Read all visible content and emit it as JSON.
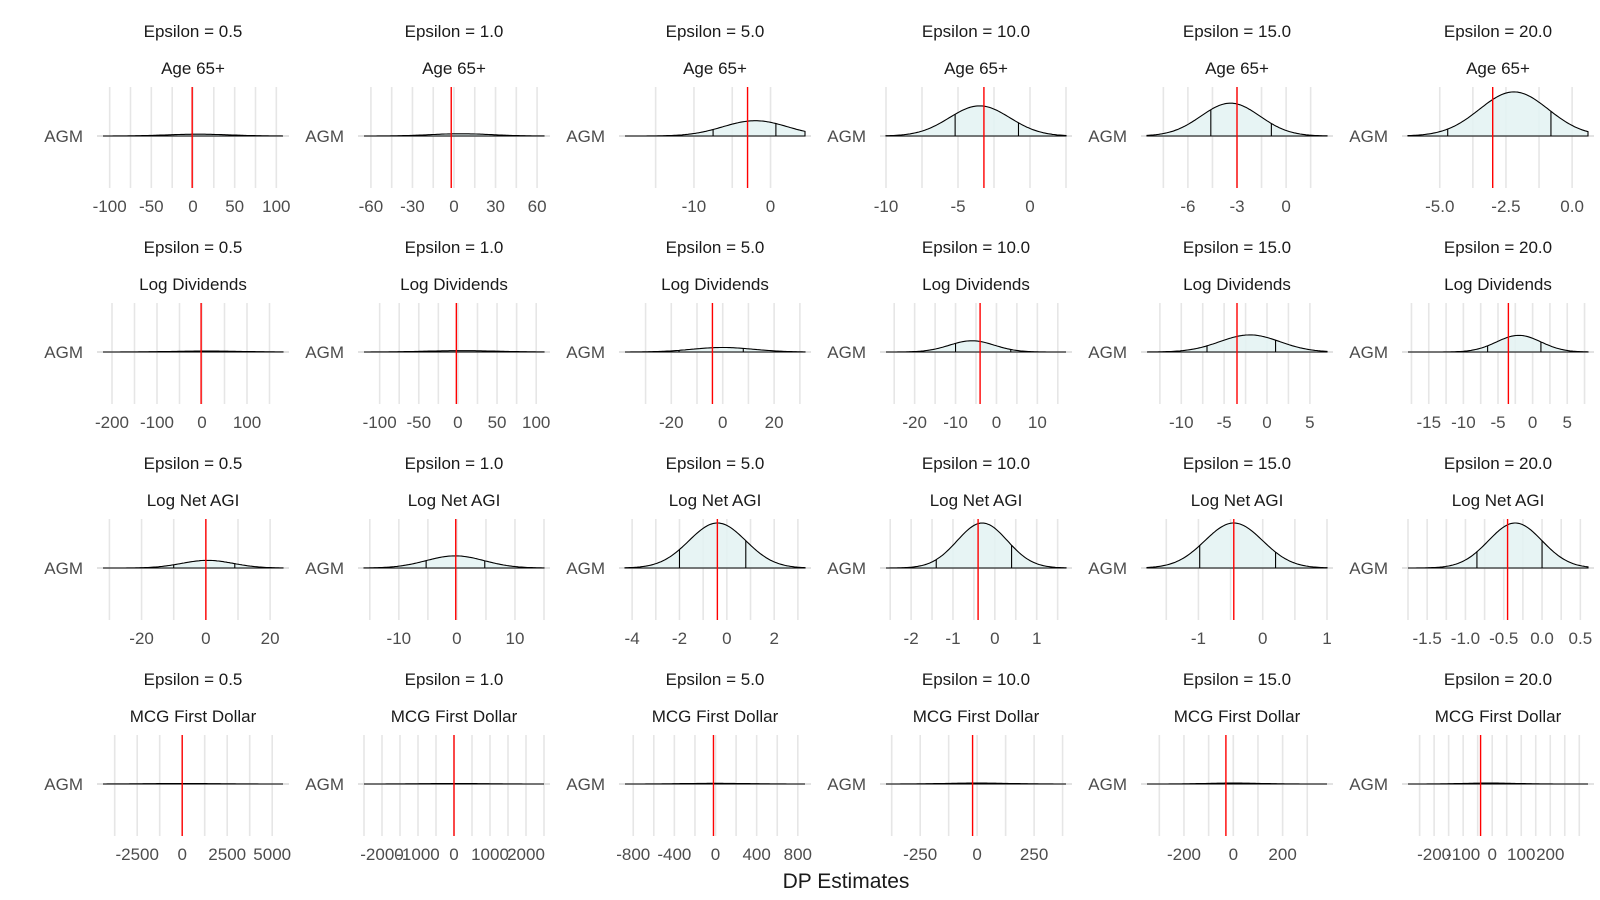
{
  "x_axis_title": "DP Estimates",
  "y_category": "AGM",
  "ref_line_color": "#ff0000",
  "density_fill": "#e3f2f2",
  "chart_data": [
    {
      "type": "density",
      "variable": "Age 65+",
      "epsilon": "Epsilon = 0.5",
      "xlim": [
        -108,
        108
      ],
      "ticks": [
        -100,
        -50,
        0,
        50,
        100
      ],
      "ref": -1,
      "peak_x": 6,
      "sd": 38,
      "height": 0.04,
      "quantiles": [],
      "scale": "free_y"
    },
    {
      "type": "density",
      "variable": "Age 65+",
      "epsilon": "Epsilon = 1.0",
      "xlim": [
        -65,
        65
      ],
      "ticks": [
        -60,
        -30,
        0,
        30,
        60
      ],
      "ref": -2,
      "peak_x": 5,
      "sd": 22,
      "height": 0.05,
      "quantiles": [],
      "scale": "free_y"
    },
    {
      "type": "density",
      "variable": "Age 65+",
      "epsilon": "Epsilon = 5.0",
      "xlim": [
        -19,
        4.5
      ],
      "ticks": [
        -10,
        0
      ],
      "ref": -3,
      "peak_x": -2,
      "sd": 4.2,
      "height": 0.34,
      "quantiles": [
        -7.5,
        0.7
      ],
      "scale": "free_y"
    },
    {
      "type": "density",
      "variable": "Age 65+",
      "epsilon": "Epsilon = 10.0",
      "xlim": [
        -10,
        2.5
      ],
      "ticks": [
        -10,
        -5,
        0
      ],
      "ref": -3.2,
      "peak_x": -3.5,
      "sd": 2.1,
      "height": 0.67,
      "quantiles": [
        -5.2,
        -0.8
      ],
      "scale": "free_y"
    },
    {
      "type": "density",
      "variable": "Age 65+",
      "epsilon": "Epsilon = 15.0",
      "xlim": [
        -8.5,
        2.5
      ],
      "ticks": [
        -6,
        -3,
        0
      ],
      "ref": -3.0,
      "peak_x": -3.4,
      "sd": 1.8,
      "height": 0.73,
      "quantiles": [
        -4.6,
        -0.9
      ],
      "scale": "free_y"
    },
    {
      "type": "density",
      "variable": "Age 65+",
      "epsilon": "Epsilon = 20.0",
      "xlim": [
        -6.2,
        0.6
      ],
      "ticks": [
        -5.0,
        -2.5,
        0.0
      ],
      "ref": -3.0,
      "peak_x": -2.2,
      "sd": 1.3,
      "height": 0.98,
      "quantiles": [
        -4.7,
        -0.8
      ],
      "scale": "free_y"
    },
    {
      "type": "density",
      "variable": "Log Dividends",
      "epsilon": "Epsilon = 0.5",
      "xlim": [
        -220,
        180
      ],
      "ticks": [
        -200,
        -100,
        0,
        100
      ],
      "ref": -2,
      "peak_x": 10,
      "sd": 80,
      "height": 0.02,
      "quantiles": [],
      "scale": "free_y"
    },
    {
      "type": "density",
      "variable": "Log Dividends",
      "epsilon": "Epsilon = 1.0",
      "xlim": [
        -120,
        110
      ],
      "ticks": [
        -100,
        -50,
        0,
        50,
        100
      ],
      "ref": -2,
      "peak_x": 5,
      "sd": 45,
      "height": 0.03,
      "quantiles": [],
      "scale": "free_y"
    },
    {
      "type": "density",
      "variable": "Log Dividends",
      "epsilon": "Epsilon = 5.0",
      "xlim": [
        -38,
        32
      ],
      "ticks": [
        -20,
        0,
        20
      ],
      "ref": -4,
      "peak_x": 0,
      "sd": 12,
      "height": 0.1,
      "quantiles": [
        -17,
        8
      ],
      "scale": "free_y"
    },
    {
      "type": "density",
      "variable": "Log Dividends",
      "epsilon": "Epsilon = 10.0",
      "xlim": [
        -27,
        17
      ],
      "ticks": [
        -20,
        -10,
        0,
        10
      ],
      "ref": -4,
      "peak_x": -6,
      "sd": 5.5,
      "height": 0.25,
      "quantiles": [
        -10,
        3.5
      ],
      "scale": "free_y"
    },
    {
      "type": "density",
      "variable": "Log Dividends",
      "epsilon": "Epsilon = 15.0",
      "xlim": [
        -14,
        7
      ],
      "ticks": [
        -10,
        -5,
        0,
        5
      ],
      "ref": -3.5,
      "peak_x": -2,
      "sd": 3.5,
      "height": 0.38,
      "quantiles": [
        -7,
        1
      ],
      "scale": "free_y"
    },
    {
      "type": "density",
      "variable": "Log Dividends",
      "epsilon": "Epsilon = 20.0",
      "xlim": [
        -18,
        8
      ],
      "ticks": [
        -15,
        -10,
        -5,
        0,
        5
      ],
      "ref": -3.5,
      "peak_x": -2,
      "sd": 3.2,
      "height": 0.37,
      "quantiles": [
        -6.5,
        1.2
      ],
      "scale": "free_y"
    },
    {
      "type": "density",
      "variable": "Log Net AGI",
      "epsilon": "Epsilon = 0.5",
      "xlim": [
        -32,
        24
      ],
      "ticks": [
        -20,
        0,
        20
      ],
      "ref": 0,
      "peak_x": 0.5,
      "sd": 8,
      "height": 0.17,
      "quantiles": [
        -10,
        9
      ],
      "scale": "free_y"
    },
    {
      "type": "density",
      "variable": "Log Net AGI",
      "epsilon": "Epsilon = 1.0",
      "xlim": [
        -16,
        15
      ],
      "ticks": [
        -10,
        0,
        10
      ],
      "ref": -0.2,
      "peak_x": -0.3,
      "sd": 5,
      "height": 0.27,
      "quantiles": [
        -5.3,
        4.8
      ],
      "scale": "free_y"
    },
    {
      "type": "density",
      "variable": "Log Net AGI",
      "epsilon": "Epsilon = 5.0",
      "xlim": [
        -4.3,
        3.3
      ],
      "ticks": [
        -4,
        -2,
        0,
        2
      ],
      "ref": -0.4,
      "peak_x": -0.4,
      "sd": 1.2,
      "height": 1.0,
      "quantiles": [
        -2.0,
        0.8
      ],
      "scale": "free_y"
    },
    {
      "type": "density",
      "variable": "Log Net AGI",
      "epsilon": "Epsilon = 10.0",
      "xlim": [
        -2.6,
        1.7
      ],
      "ticks": [
        -2,
        -1,
        0,
        1
      ],
      "ref": -0.4,
      "peak_x": -0.3,
      "sd": 0.6,
      "height": 1.0,
      "quantiles": [
        -1.4,
        0.4
      ],
      "scale": "free_y"
    },
    {
      "type": "density",
      "variable": "Log Net AGI",
      "epsilon": "Epsilon = 15.0",
      "xlim": [
        -1.8,
        1.0
      ],
      "ticks": [
        -1,
        0,
        1
      ],
      "ref": -0.45,
      "peak_x": -0.45,
      "sd": 0.45,
      "height": 1.0,
      "quantiles": [
        -0.98,
        0.2
      ],
      "scale": "free_y"
    },
    {
      "type": "density",
      "variable": "Log Net AGI",
      "epsilon": "Epsilon = 20.0",
      "xlim": [
        -1.75,
        0.6
      ],
      "ticks": [
        -1.5,
        -1.0,
        -0.5,
        0.0,
        0.5
      ],
      "ref": -0.45,
      "peak_x": -0.35,
      "sd": 0.35,
      "height": 1.0,
      "quantiles": [
        -0.85,
        0.0
      ],
      "scale": "free_y"
    },
    {
      "type": "density",
      "variable": "MCG First Dollar",
      "epsilon": "Epsilon = 0.5",
      "xlim": [
        -4400,
        5600
      ],
      "ticks": [
        -2500,
        0,
        2500,
        5000
      ],
      "ref": 0,
      "peak_x": 0,
      "sd": 2000,
      "height": 0.01,
      "quantiles": [],
      "scale": "free_y"
    },
    {
      "type": "density",
      "variable": "MCG First Dollar",
      "epsilon": "Epsilon = 1.0",
      "xlim": [
        -2500,
        2500
      ],
      "ticks": [
        -2000,
        -1000,
        0,
        1000,
        2000
      ],
      "ref": 0,
      "peak_x": 0,
      "sd": 900,
      "height": 0.01,
      "quantiles": [],
      "scale": "free_y"
    },
    {
      "type": "density",
      "variable": "MCG First Dollar",
      "epsilon": "Epsilon = 5.0",
      "xlim": [
        -880,
        870
      ],
      "ticks": [
        -800,
        -400,
        0,
        400,
        800
      ],
      "ref": -20,
      "peak_x": 0,
      "sd": 300,
      "height": 0.015,
      "quantiles": [],
      "scale": "free_y"
    },
    {
      "type": "density",
      "variable": "MCG First Dollar",
      "epsilon": "Epsilon = 10.0",
      "xlim": [
        -400,
        390
      ],
      "ticks": [
        -250,
        0,
        250
      ],
      "ref": -20,
      "peak_x": 0,
      "sd": 140,
      "height": 0.02,
      "quantiles": [],
      "scale": "free_y"
    },
    {
      "type": "density",
      "variable": "MCG First Dollar",
      "epsilon": "Epsilon = 15.0",
      "xlim": [
        -350,
        380
      ],
      "ticks": [
        -200,
        0,
        200
      ],
      "ref": -30,
      "peak_x": 0,
      "sd": 110,
      "height": 0.02,
      "quantiles": [],
      "scale": "free_y"
    },
    {
      "type": "density",
      "variable": "MCG First Dollar",
      "epsilon": "Epsilon = 20.0",
      "xlim": [
        -290,
        330
      ],
      "ticks": [
        -200,
        -100,
        0,
        100,
        200
      ],
      "ref": -40,
      "peak_x": -10,
      "sd": 90,
      "height": 0.02,
      "quantiles": [],
      "scale": "free_y"
    }
  ]
}
